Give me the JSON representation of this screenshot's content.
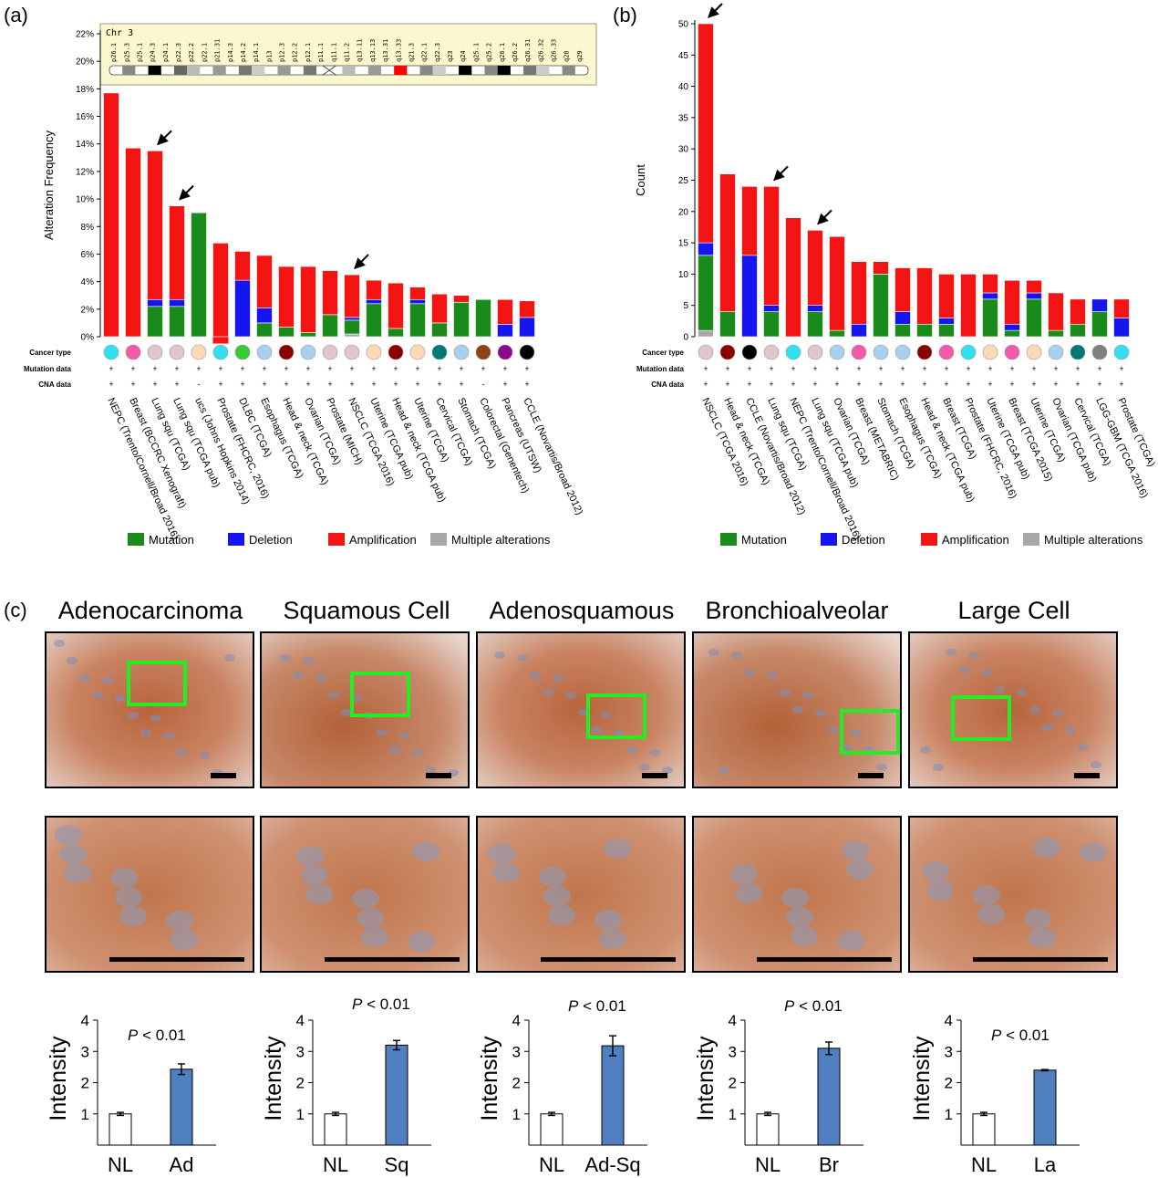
{
  "panels": {
    "a": "(a)",
    "b": "(b)",
    "c": "(c)"
  },
  "colors": {
    "mutation": "#1a8a1a",
    "deletion": "#1515f0",
    "amplification": "#f51414",
    "multiple": "#a8a8a8",
    "intensity_bar": "#4f7fbf"
  },
  "row_labels": {
    "cancer_type": "Cancer type",
    "mutation": "Mutation data",
    "cna": "CNA data"
  },
  "legend": [
    {
      "label": "Mutation",
      "key": "mutation"
    },
    {
      "label": "Deletion",
      "key": "deletion"
    },
    {
      "label": "Amplification",
      "key": "amplification"
    },
    {
      "label": "Multiple alterations",
      "key": "multiple"
    }
  ],
  "ideogram": {
    "title": "Chr 3",
    "bands": [
      "p26.1",
      "p25.3",
      "p25.1",
      "p24.3",
      "p24.1",
      "p22.3",
      "p22.2",
      "p22.1",
      "p21.31",
      "p14.3",
      "p14.2",
      "p14.1",
      "p13",
      "p12.3",
      "p12.2",
      "p12.1",
      "p11.1",
      "q11.1",
      "q11.2",
      "q13.11",
      "q13.13",
      "q13.31",
      "q13.33",
      "q21.3",
      "q22.1",
      "q22.3",
      "q23",
      "q24",
      "q25.1",
      "q25.2",
      "q26.1",
      "q26.2",
      "q26.31",
      "q26.32",
      "q26.33",
      "q28",
      "q29"
    ]
  },
  "chart_data": [
    {
      "type": "bar",
      "stacked": true,
      "ylabel": "Alteration Frequency",
      "ylim": [
        0,
        22
      ],
      "yticks": [
        "0%",
        "2%",
        "4%",
        "6%",
        "8%",
        "10%",
        "12%",
        "14%",
        "16%",
        "18%",
        "20%",
        "22%"
      ],
      "categories": [
        "NEPC (Trento/Cornell/Broad 2016)",
        "Breast (BCCRC Xenograft)",
        "Lung squ (TCGA)",
        "Lung squ (TCGA pub)",
        "ucs (Johns Hopkins 2014)",
        "Prostate (FHCRC, 2016)",
        "DLBC (TCGA)",
        "Esophagus (TCGA)",
        "Head & neck (TCGA)",
        "Ovarian (TCGA)",
        "Prostate (MICH)",
        "NSCLC (TCGA 2016)",
        "Uterine (TCGA pub)",
        "Head & neck (TCGA pub)",
        "Uterine (TCGA)",
        "Cervical (TCGA)",
        "Stomach (TCGA)",
        "Colorectal (Genentech)",
        "Pancreas (UTSW)",
        "CCLE (Novartis/Broad 2012)"
      ],
      "series": [
        {
          "name": "Multiple alterations",
          "values": [
            0,
            0,
            0,
            0,
            0,
            0,
            0,
            0,
            0,
            0,
            0,
            0.2,
            0,
            0,
            0,
            0,
            0,
            0,
            0,
            0
          ]
        },
        {
          "name": "Mutation",
          "values": [
            0,
            0,
            2.2,
            2.2,
            9.0,
            -0.5,
            0,
            1.0,
            0.7,
            0.3,
            1.6,
            1.0,
            2.4,
            0.6,
            2.4,
            1.0,
            2.5,
            2.7,
            0,
            0
          ]
        },
        {
          "name": "Deletion",
          "values": [
            0,
            0,
            0.5,
            0.5,
            0,
            0,
            4.1,
            1.1,
            0,
            0,
            0,
            0.2,
            0.3,
            0,
            0.3,
            0,
            0,
            0,
            0.9,
            1.4
          ]
        },
        {
          "name": "Amplification",
          "values": [
            17.7,
            13.7,
            10.8,
            6.8,
            0,
            6.8,
            2.1,
            3.8,
            4.4,
            4.8,
            3.2,
            3.1,
            1.4,
            3.3,
            0.9,
            2.1,
            0.5,
            0,
            1.8,
            1.2
          ]
        }
      ],
      "cancer_type_colors": [
        "#33e0f0",
        "#f05aa8",
        "#e0c6cc",
        "#e0c6cc",
        "#fdd9b5",
        "#33e0f0",
        "#33cc33",
        "#a8d0f0",
        "#8a0000",
        "#a8d0f0",
        "#e0c6cc",
        "#e0c6cc",
        "#fdd9b5",
        "#8a0000",
        "#fdd9b5",
        "#007878",
        "#a8d0f0",
        "#8b4513",
        "#8b0a8b",
        "#000000"
      ],
      "mutation_marks": [
        "+",
        "+",
        "+",
        "+",
        "+",
        "+",
        "+",
        "+",
        "+",
        "+",
        "+",
        "+",
        "+",
        "+",
        "+",
        "+",
        "+",
        "+",
        "+",
        "+"
      ],
      "cna_marks": [
        "+",
        "+",
        "+",
        "+",
        "-",
        "+",
        "+",
        "+",
        "+",
        "+",
        "+",
        "+",
        "+",
        "+",
        "+",
        "+",
        "+",
        "-",
        "+",
        "+"
      ],
      "arrows_at": [
        2,
        3,
        11
      ]
    },
    {
      "type": "bar",
      "stacked": true,
      "ylabel": "Count",
      "ylim": [
        0,
        50
      ],
      "yticks": [
        "0",
        "5",
        "10",
        "15",
        "20",
        "25",
        "30",
        "35",
        "40",
        "45",
        "50"
      ],
      "categories": [
        "NSCLC (TCGA 2016)",
        "Head & neck (TCGA)",
        "CCLE (Novartis/Broad 2012)",
        "Lung squ (TCGA)",
        "NEPC (Trento/Cornell/Broad 2016)",
        "Lung squ (TCGA pub)",
        "Ovarian (TCGA)",
        "Breast (METABRIC)",
        "Stomach (TCGA)",
        "Esophagus (TCGA)",
        "Head & neck (TCGA pub)",
        "Breast (TCGA)",
        "Prostate (FHCRC, 2016)",
        "Uterine (TCGA pub)",
        "Breast (TCGA 2015)",
        "Uterine (TCGA)",
        "Ovarian (TCGA pub)",
        "Cervical (TCGA)",
        "LGG-GBM (TCGA 2016)",
        "Prostate (TCGA)"
      ],
      "series": [
        {
          "name": "Multiple alterations",
          "values": [
            1,
            0,
            0,
            0,
            0,
            0,
            0,
            0,
            0,
            0,
            0,
            0,
            0,
            0,
            0,
            0,
            0,
            0,
            0,
            0
          ]
        },
        {
          "name": "Mutation",
          "values": [
            12,
            4,
            0,
            4,
            0,
            4,
            1,
            0,
            10,
            2,
            2,
            2,
            0,
            6,
            1,
            6,
            1,
            2,
            4,
            0
          ]
        },
        {
          "name": "Deletion",
          "values": [
            2,
            0,
            13,
            1,
            0,
            1,
            0,
            2,
            0,
            2,
            0,
            1,
            0,
            1,
            1,
            1,
            0,
            0,
            2,
            3
          ]
        },
        {
          "name": "Amplification",
          "values": [
            35,
            22,
            11,
            19,
            19,
            12,
            15,
            10,
            2,
            7,
            9,
            7,
            10,
            3,
            7,
            2,
            6,
            4,
            0,
            3
          ]
        }
      ],
      "cancer_type_colors": [
        "#e0c6cc",
        "#8a0000",
        "#000000",
        "#e0c6cc",
        "#33e0f0",
        "#e0c6cc",
        "#a8d0f0",
        "#f05aa8",
        "#a8d0f0",
        "#a8d0f0",
        "#8a0000",
        "#f05aa8",
        "#33e0f0",
        "#fdd9b5",
        "#f05aa8",
        "#fdd9b5",
        "#a8d0f0",
        "#007878",
        "#808080",
        "#33e0f0"
      ],
      "mutation_marks": [
        "+",
        "+",
        "+",
        "+",
        "+",
        "+",
        "+",
        "+",
        "+",
        "+",
        "+",
        "+",
        "+",
        "+",
        "+",
        "+",
        "+",
        "+",
        "+",
        "+"
      ],
      "cna_marks": [
        "+",
        "+",
        "+",
        "+",
        "+",
        "+",
        "+",
        "+",
        "+",
        "+",
        "+",
        "+",
        "+",
        "+",
        "+",
        "+",
        "+",
        "+",
        "+",
        "+"
      ],
      "arrows_at": [
        0,
        3,
        5
      ]
    },
    {
      "type": "bar",
      "title": "Adenocarcinoma",
      "ylabel": "Intensity",
      "ylim": [
        0,
        4
      ],
      "yticks": [
        "1",
        "2",
        "3",
        "4"
      ],
      "categories": [
        "NL",
        "Ad"
      ],
      "values": [
        1.0,
        2.43
      ],
      "errors": [
        0.05,
        0.17
      ],
      "pvalue": "< 0.01"
    },
    {
      "type": "bar",
      "title": "Squamous Cell",
      "ylabel": "Intensity",
      "ylim": [
        0,
        4
      ],
      "yticks": [
        "1",
        "2",
        "3",
        "4"
      ],
      "categories": [
        "NL",
        "Sq"
      ],
      "values": [
        1.0,
        3.2
      ],
      "errors": [
        0.05,
        0.15
      ],
      "pvalue": "< 0.01"
    },
    {
      "type": "bar",
      "title": "Adenosquamous",
      "ylabel": "Intensity",
      "ylim": [
        0,
        4
      ],
      "yticks": [
        "1",
        "2",
        "3",
        "4"
      ],
      "categories": [
        "NL",
        "Ad-Sq"
      ],
      "values": [
        1.0,
        3.18
      ],
      "errors": [
        0.05,
        0.32
      ],
      "pvalue": "< 0.01"
    },
    {
      "type": "bar",
      "title": "Bronchioalveolar",
      "ylabel": "Intensity",
      "ylim": [
        0,
        4
      ],
      "yticks": [
        "1",
        "2",
        "3",
        "4"
      ],
      "categories": [
        "NL",
        "Br"
      ],
      "values": [
        1.0,
        3.1
      ],
      "errors": [
        0.05,
        0.2
      ],
      "pvalue": "< 0.01"
    },
    {
      "type": "bar",
      "title": "Large Cell",
      "ylabel": "Intensity",
      "ylim": [
        0,
        4
      ],
      "yticks": [
        "1",
        "2",
        "3",
        "4"
      ],
      "categories": [
        "NL",
        "La"
      ],
      "values": [
        1.0,
        2.4
      ],
      "errors": [
        0.05,
        0.02
      ],
      "pvalue": "< 0.01"
    }
  ],
  "p_prefix": "P"
}
